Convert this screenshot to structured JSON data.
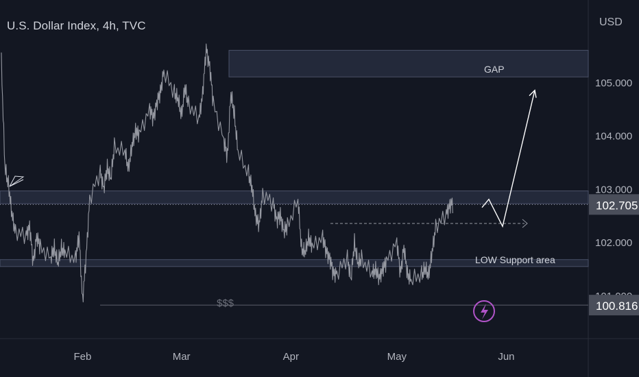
{
  "header": {
    "title": "U.S. Dollar Index, 4h, TVC",
    "currency": "USD"
  },
  "colors": {
    "background": "#131722",
    "price_line": "#9598a1",
    "zone_fill": "#2a3043",
    "zone_border": "#4a5168",
    "text": "#d1d4dc",
    "label_box": "#4a4e5a",
    "accent": "#b154c9",
    "arrow": "#ffffff"
  },
  "chart_data": {
    "type": "line",
    "x_labels": [
      "Feb",
      "Mar",
      "Apr",
      "May",
      "Jun"
    ],
    "y_ticks": [
      "105.000",
      "104.000",
      "103.000",
      "102.000",
      "101.000"
    ],
    "ylim": [
      100.45,
      106.1
    ],
    "series": [
      {
        "x": [
          "2023-01-09",
          "2023-01-10",
          "2023-01-11",
          "2023-01-12",
          "2023-01-13",
          "2023-01-16",
          "2023-01-17",
          "2023-01-18",
          "2023-01-19",
          "2023-01-20",
          "2023-01-23",
          "2023-01-24",
          "2023-01-25",
          "2023-01-26",
          "2023-01-27",
          "2023-01-30",
          "2023-01-31",
          "2023-02-01",
          "2023-02-02",
          "2023-02-03",
          "2023-02-06",
          "2023-02-07",
          "2023-02-08",
          "2023-02-09",
          "2023-02-10",
          "2023-02-13",
          "2023-02-14",
          "2023-02-15",
          "2023-02-16",
          "2023-02-17",
          "2023-02-20",
          "2023-02-21",
          "2023-02-22",
          "2023-02-23",
          "2023-02-24",
          "2023-02-27",
          "2023-02-28",
          "2023-03-01",
          "2023-03-02",
          "2023-03-03",
          "2023-03-06",
          "2023-03-07",
          "2023-03-08",
          "2023-03-09",
          "2023-03-10",
          "2023-03-13",
          "2023-03-14",
          "2023-03-15",
          "2023-03-16",
          "2023-03-17",
          "2023-03-20",
          "2023-03-21",
          "2023-03-22",
          "2023-03-23",
          "2023-03-24",
          "2023-03-27",
          "2023-03-28",
          "2023-03-29",
          "2023-03-30",
          "2023-03-31",
          "2023-04-03",
          "2023-04-04",
          "2023-04-05",
          "2023-04-06",
          "2023-04-07",
          "2023-04-10",
          "2023-04-11",
          "2023-04-12",
          "2023-04-13",
          "2023-04-14",
          "2023-04-17",
          "2023-04-18",
          "2023-04-19",
          "2023-04-20",
          "2023-04-21",
          "2023-04-24",
          "2023-04-25",
          "2023-04-26",
          "2023-04-27",
          "2023-04-28",
          "2023-05-01",
          "2023-05-02",
          "2023-05-03",
          "2023-05-04",
          "2023-05-05",
          "2023-05-08",
          "2023-05-09",
          "2023-05-10",
          "2023-05-11",
          "2023-05-12",
          "2023-05-15",
          "2023-05-16"
        ],
        "values": [
          105.4,
          103.4,
          103.1,
          102.5,
          102.2,
          102.1,
          102.3,
          101.6,
          102.1,
          101.9,
          101.7,
          101.9,
          101.6,
          101.9,
          101.8,
          101.7,
          102.1,
          100.9,
          101.7,
          102.8,
          103.3,
          103.0,
          103.4,
          103.2,
          103.8,
          103.7,
          103.4,
          103.8,
          104.1,
          104.0,
          104.5,
          104.3,
          104.6,
          104.8,
          105.2,
          104.8,
          104.7,
          104.4,
          104.9,
          104.6,
          104.3,
          104.8,
          105.6,
          105.3,
          104.6,
          103.9,
          103.6,
          104.8,
          104.4,
          103.7,
          103.3,
          103.0,
          102.5,
          102.3,
          102.9,
          102.7,
          102.4,
          102.5,
          102.2,
          102.3,
          102.8,
          101.9,
          101.8,
          102.1,
          101.9,
          102.1,
          101.8,
          101.7,
          101.4,
          101.4,
          101.7,
          101.3,
          102.0,
          101.6,
          101.7,
          101.4,
          101.5,
          101.3,
          101.5,
          101.6,
          102.0,
          101.4,
          101.9,
          101.4,
          101.3,
          101.4,
          101.5,
          101.4,
          101.8,
          102.3,
          102.5,
          102.7
        ]
      }
    ],
    "current_price": "102.705",
    "low_price": "100.816",
    "zones": [
      {
        "label": "GAP",
        "from": 105.1,
        "to": 105.6
      },
      {
        "label": "",
        "from": 102.72,
        "to": 102.96
      },
      {
        "label": "LOW Support area",
        "from": 101.54,
        "to": 101.67
      }
    ],
    "annotations": [
      "$$$"
    ],
    "projection_arrow": [
      102.7,
      102.5,
      104.85
    ]
  }
}
